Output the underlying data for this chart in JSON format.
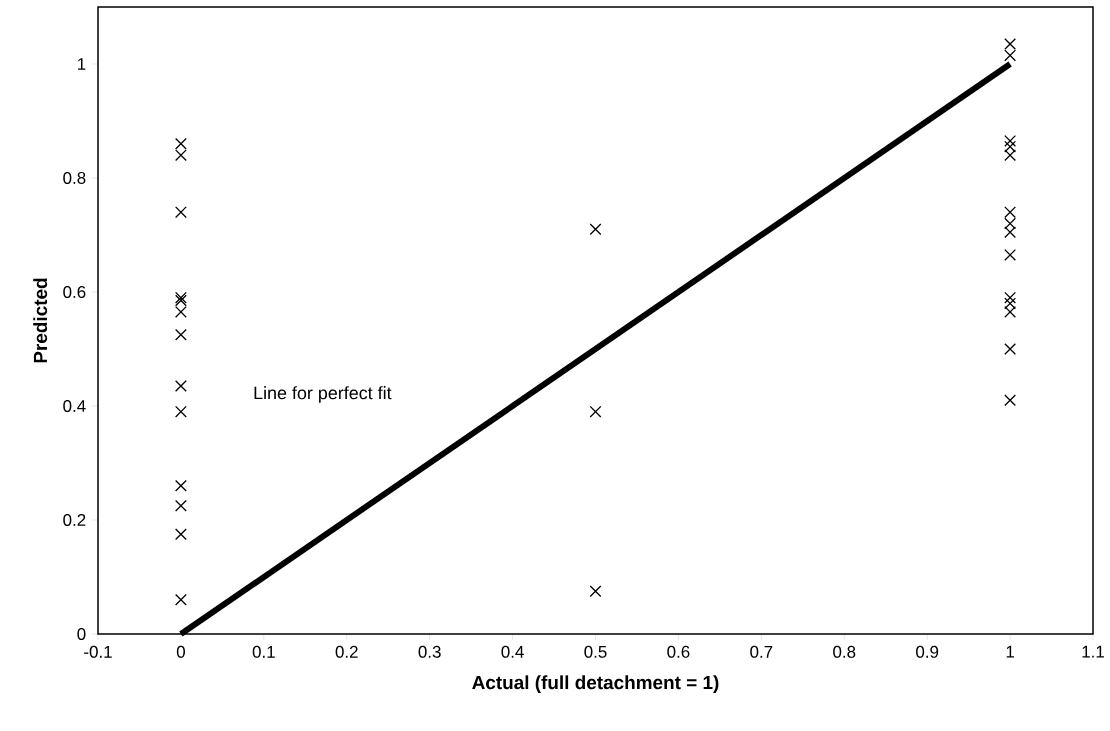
{
  "chart_data": {
    "type": "scatter",
    "xlabel": "Actual (full detachment = 1)",
    "ylabel": "Predicted",
    "x": [
      0,
      0,
      0,
      0,
      0,
      0,
      0,
      0,
      0,
      0,
      0,
      0,
      0,
      0.5,
      0.5,
      0.5,
      1,
      1,
      1,
      1,
      1,
      1,
      1,
      1,
      1,
      1,
      1,
      1,
      1,
      1
    ],
    "series": [
      {
        "color": "#000000",
        "marker": "cross",
        "values": [
          0.86,
          0.84,
          0.74,
          0.59,
          0.585,
          0.565,
          0.525,
          0.435,
          0.39,
          0.26,
          0.225,
          0.175,
          0.06,
          0.71,
          0.39,
          0.075,
          1.035,
          1.015,
          0.865,
          0.855,
          0.84,
          0.74,
          0.72,
          0.705,
          0.665,
          0.59,
          0.58,
          0.565,
          0.5,
          0.41
        ]
      },
      {
        "type": "line",
        "color": "#000000",
        "marker": "none",
        "line_style": "solid",
        "x": [
          0,
          1
        ],
        "values": [
          0,
          1
        ]
      }
    ],
    "annotations": [
      "Line for perfect fit"
    ],
    "xlim": [
      -0.1,
      1.1
    ],
    "ylim": [
      0,
      1.1
    ],
    "xticks": [
      -0.1,
      0,
      0.1,
      0.2,
      0.3,
      0.4,
      0.5,
      0.6,
      0.7,
      0.8,
      0.9,
      1,
      1.1
    ],
    "yticks": [
      0,
      0.2,
      0.4,
      0.6,
      0.8,
      1
    ],
    "grid": false
  }
}
